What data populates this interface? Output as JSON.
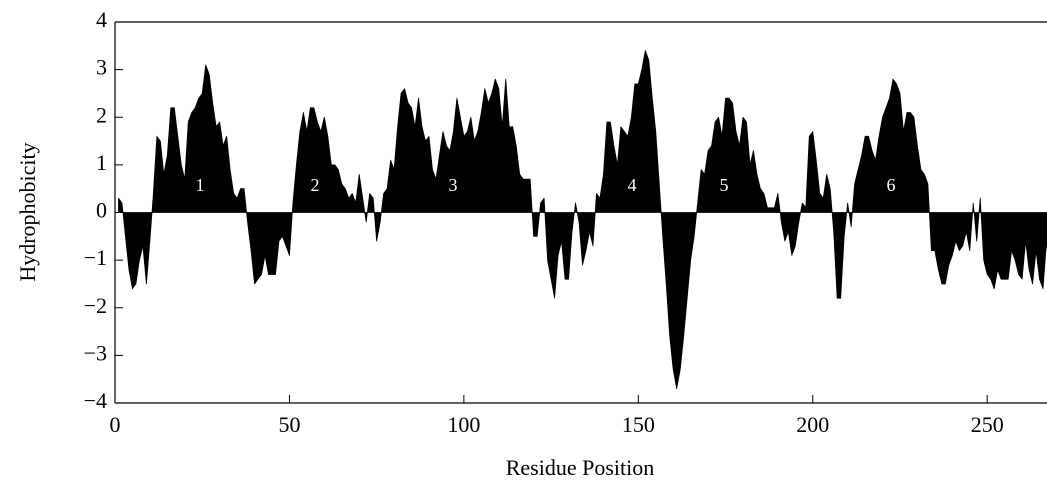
{
  "chart_data": {
    "type": "area",
    "xlabel": "Residue Position",
    "ylabel": "Hydrophobicity",
    "color": "#000000",
    "annotations": [
      "1",
      "2",
      "3",
      "4",
      "5",
      "6"
    ],
    "x": [
      1,
      2,
      3,
      4,
      5,
      6,
      7,
      8,
      9,
      10,
      11,
      12,
      13,
      14,
      15,
      16,
      17,
      18,
      19,
      20,
      21,
      22,
      23,
      24,
      25,
      26,
      27,
      28,
      29,
      30,
      31,
      32,
      33,
      34,
      35,
      36,
      37,
      38,
      39,
      40,
      41,
      42,
      43,
      44,
      45,
      46,
      47,
      48,
      49,
      50,
      51,
      52,
      53,
      54,
      55,
      56,
      57,
      58,
      59,
      60,
      61,
      62,
      63,
      64,
      65,
      66,
      67,
      68,
      69,
      70,
      71,
      72,
      73,
      74,
      75,
      76,
      77,
      78,
      79,
      80,
      81,
      82,
      83,
      84,
      85,
      86,
      87,
      88,
      89,
      90,
      91,
      92,
      93,
      94,
      95,
      96,
      97,
      98,
      99,
      100,
      101,
      102,
      103,
      104,
      105,
      106,
      107,
      108,
      109,
      110,
      111,
      112,
      113,
      114,
      115,
      116,
      117,
      118,
      119,
      120,
      121,
      122,
      123,
      124,
      125,
      126,
      127,
      128,
      129,
      130,
      131,
      132,
      133,
      134,
      135,
      136,
      137,
      138,
      139,
      140,
      141,
      142,
      143,
      144,
      145,
      146,
      147,
      148,
      149,
      150,
      151,
      152,
      153,
      154,
      155,
      156,
      157,
      158,
      159,
      160,
      161,
      162,
      163,
      164,
      165,
      166,
      167,
      168,
      169,
      170,
      171,
      172,
      173,
      174,
      175,
      176,
      177,
      178,
      179,
      180,
      181,
      182,
      183,
      184,
      185,
      186,
      187,
      188,
      189,
      190,
      191,
      192,
      193,
      194,
      195,
      196,
      197,
      198,
      199,
      200,
      201,
      202,
      203,
      204,
      205,
      206,
      207,
      208,
      209,
      210,
      211,
      212,
      213,
      214,
      215,
      216,
      217,
      218,
      219,
      220,
      221,
      222,
      223,
      224,
      225,
      226,
      227,
      228,
      229,
      230,
      231,
      232,
      233,
      234,
      235,
      236,
      237,
      238,
      239,
      240,
      241,
      242,
      243,
      244,
      245,
      246,
      247,
      248,
      249,
      250,
      251,
      252,
      253,
      254,
      255,
      256,
      257,
      258,
      259,
      260,
      261,
      262,
      263,
      264,
      265,
      266,
      267,
      268
    ],
    "values": [
      0.3,
      0.2,
      -0.5,
      -1.2,
      -1.6,
      -1.5,
      -1.0,
      -0.7,
      -1.5,
      -0.6,
      0.4,
      1.6,
      1.5,
      0.8,
      1.2,
      2.2,
      2.2,
      1.6,
      1.0,
      0.7,
      1.9,
      2.1,
      2.2,
      2.4,
      2.5,
      3.1,
      2.9,
      2.3,
      1.8,
      1.9,
      1.4,
      1.6,
      0.9,
      0.4,
      0.3,
      0.5,
      0.5,
      -0.2,
      -0.8,
      -1.5,
      -1.4,
      -1.3,
      -0.9,
      -1.3,
      -1.3,
      -1.3,
      -0.6,
      -0.5,
      -0.7,
      -0.9,
      0.2,
      1.0,
      1.7,
      2.1,
      1.7,
      2.2,
      2.2,
      1.9,
      1.7,
      2.0,
      1.6,
      1.0,
      1.0,
      0.9,
      0.6,
      0.5,
      0.3,
      0.4,
      0.2,
      0.8,
      0.3,
      -0.2,
      0.4,
      0.3,
      -0.6,
      -0.2,
      0.4,
      0.5,
      1.1,
      0.9,
      1.8,
      2.5,
      2.6,
      2.3,
      2.2,
      1.8,
      2.4,
      1.8,
      1.5,
      1.6,
      0.9,
      0.7,
      1.2,
      1.7,
      1.4,
      1.3,
      1.7,
      2.4,
      2.0,
      1.6,
      1.7,
      2.0,
      1.5,
      1.7,
      2.1,
      2.6,
      2.3,
      2.5,
      2.8,
      2.6,
      1.8,
      2.8,
      1.8,
      1.8,
      1.4,
      0.8,
      0.7,
      0.7,
      0.7,
      -0.5,
      -0.5,
      0.2,
      0.3,
      -1.0,
      -1.4,
      -1.8,
      -0.9,
      -0.6,
      -1.4,
      -1.4,
      -0.4,
      0.2,
      -0.2,
      -1.1,
      -0.8,
      -0.4,
      -0.7,
      0.4,
      0.3,
      0.8,
      1.9,
      1.9,
      1.4,
      1.0,
      1.8,
      1.7,
      1.6,
      2.0,
      2.7,
      2.7,
      3.0,
      3.4,
      3.2,
      2.4,
      1.7,
      0.6,
      -0.5,
      -1.5,
      -2.6,
      -3.3,
      -3.7,
      -3.3,
      -2.6,
      -1.8,
      -1.0,
      -0.5,
      0.2,
      0.9,
      0.8,
      1.3,
      1.4,
      1.9,
      2.0,
      1.6,
      2.4,
      2.4,
      2.3,
      1.7,
      1.4,
      2.0,
      1.9,
      1.0,
      1.3,
      0.8,
      0.5,
      0.4,
      0.1,
      0.1,
      0.1,
      0.4,
      -0.2,
      -0.6,
      -0.4,
      -0.9,
      -0.7,
      -0.2,
      0.2,
      0.1,
      1.6,
      1.7,
      1.1,
      0.4,
      0.3,
      0.8,
      0.5,
      -0.4,
      -1.8,
      -1.8,
      -0.5,
      0.2,
      -0.3,
      0.6,
      0.9,
      1.2,
      1.6,
      1.6,
      1.3,
      1.1,
      1.6,
      2.0,
      2.2,
      2.4,
      2.8,
      2.7,
      2.5,
      1.7,
      2.1,
      2.1,
      2.0,
      1.4,
      0.9,
      0.8,
      0.6,
      -0.8,
      -0.8,
      -1.2,
      -1.5,
      -1.5,
      -1.1,
      -0.9,
      -0.6,
      -0.8,
      -0.7,
      -0.4,
      -0.8,
      0.2,
      -0.6,
      0.3,
      -1.0,
      -1.3,
      -1.4,
      -1.6,
      -1.2,
      -1.4,
      -1.4,
      -1.4,
      -0.8,
      -1.0,
      -1.3,
      -1.4,
      -0.6,
      -1.2,
      -1.5,
      -0.8,
      -1.4,
      -1.6,
      -0.6,
      -1.5
    ],
    "xlim": [
      0,
      268
    ],
    "ylim": [
      -4,
      4
    ],
    "xticks": [
      0,
      50,
      100,
      150,
      200,
      250
    ],
    "yticks": [
      {
        "value": -4,
        "label": "−4"
      },
      {
        "value": -3,
        "label": "−3"
      },
      {
        "value": -2,
        "label": "−2"
      },
      {
        "value": -1,
        "label": "−1"
      },
      0,
      1,
      2,
      3,
      4
    ]
  }
}
